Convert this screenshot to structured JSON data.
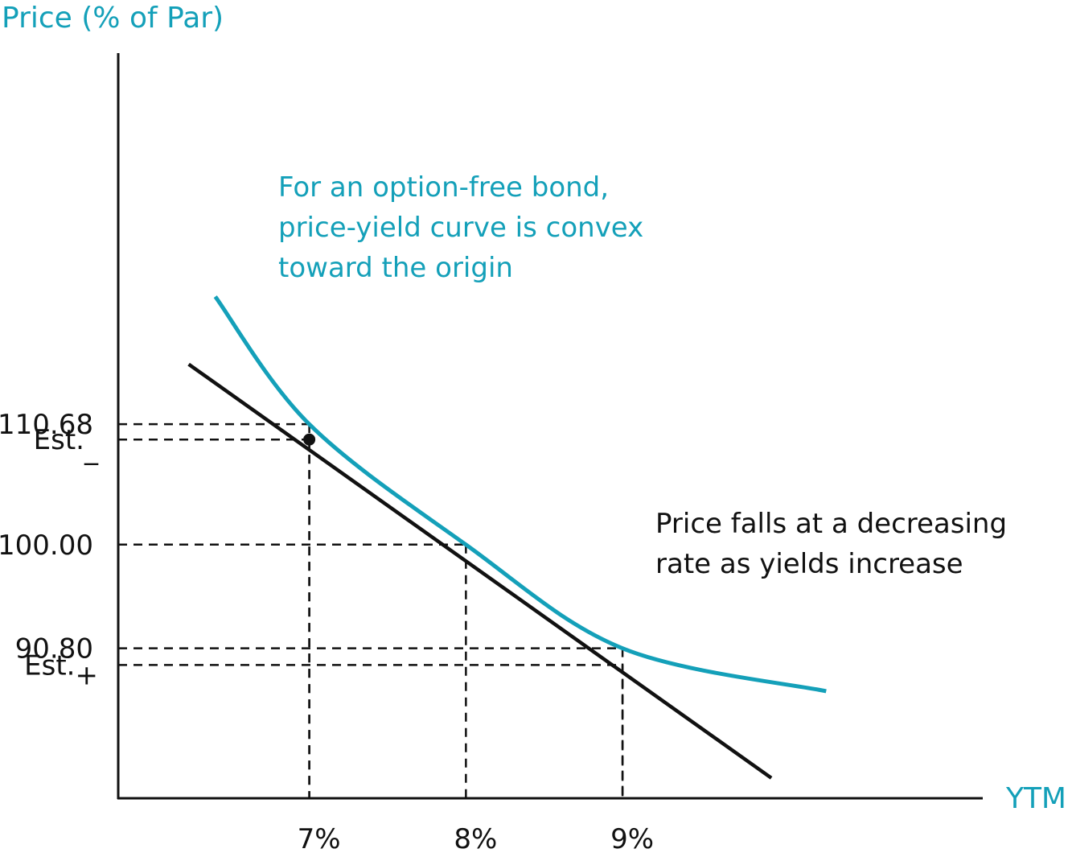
{
  "chart_data": {
    "type": "line",
    "ylabel": "Price (% of Par)",
    "xlabel": "YTM",
    "x_ticks": [
      "7%",
      "8%",
      "9%"
    ],
    "y_ticks": [
      {
        "label": "110.68",
        "value": 110.68
      },
      {
        "label": "Est.",
        "sub": "_",
        "value": 109.32
      },
      {
        "label": "100.00",
        "value": 100.0
      },
      {
        "label": "90.80",
        "value": 90.8
      },
      {
        "label": "Est.",
        "sub": "+",
        "value": 89.32
      }
    ],
    "series": [
      {
        "key": "price_yield_curve",
        "color": "#14a0b9",
        "points": [
          {
            "x": 6.4,
            "y": 122.0
          },
          {
            "x": 7.0,
            "y": 110.68
          },
          {
            "x": 8.0,
            "y": 100.0
          },
          {
            "x": 9.0,
            "y": 90.8
          },
          {
            "x": 10.3,
            "y": 87.0
          }
        ]
      },
      {
        "key": "duration_tangent_line",
        "color": "#111111",
        "points": [
          {
            "x": 6.23,
            "y": 116.0
          },
          {
            "x": 9.95,
            "y": 79.3
          }
        ]
      }
    ],
    "estimate_point": {
      "x": 7.0,
      "y": 109.32
    },
    "guides": [
      {
        "x": 7.0,
        "y": 110.68
      },
      {
        "x": 7.0,
        "y": 109.32
      },
      {
        "x": 8.0,
        "y": 100.0
      },
      {
        "x": 9.0,
        "y": 90.8
      },
      {
        "x": 9.0,
        "y": 89.32
      }
    ],
    "xlim": [
      5.78,
      11.3
    ],
    "ylim": [
      77.5,
      143.6
    ],
    "annotations": [
      {
        "key": "curve_note",
        "lines": [
          "For an option-free bond,",
          "price-yield curve is convex",
          "toward the origin"
        ],
        "color": "#14a0b9"
      },
      {
        "key": "falls_note",
        "lines": [
          "Price falls at a decreasing",
          "rate as yields increase"
        ],
        "color": "#111111"
      }
    ],
    "grid": false,
    "legend": "none"
  }
}
